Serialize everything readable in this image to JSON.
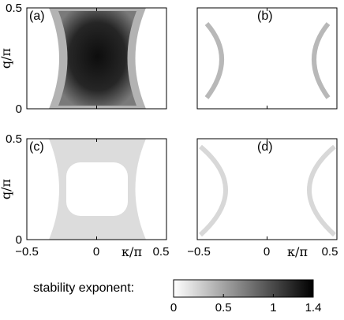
{
  "chart_data": {
    "type": "heatmap",
    "panels": [
      {
        "label": "(a)",
        "ylabel": "q/π",
        "xlabel": "",
        "pattern": "filled",
        "peak": 1.3
      },
      {
        "label": "(b)",
        "ylabel": "",
        "xlabel": "",
        "pattern": "arcs-outer",
        "peak": 0.35
      },
      {
        "label": "(c)",
        "ylabel": "q/π",
        "xlabel": "κ/π",
        "pattern": "ring-inner",
        "peak": 0.25
      },
      {
        "label": "(d)",
        "ylabel": "",
        "xlabel": "κ/π",
        "pattern": "ring-outer",
        "peak": 0.2
      }
    ],
    "xlim": [
      -0.5,
      0.5
    ],
    "ylim": [
      0,
      0.5
    ],
    "x_ticks": [
      "−0.5",
      "0",
      "0.5"
    ],
    "y_ticks": [
      "0.5",
      "0"
    ],
    "colorbar": {
      "label": "stability exponent:",
      "range": [
        0,
        1.4
      ],
      "ticks": [
        "0",
        "0.5",
        "1",
        "1.4"
      ],
      "colors": [
        "#ffffff",
        "#000000"
      ]
    }
  }
}
